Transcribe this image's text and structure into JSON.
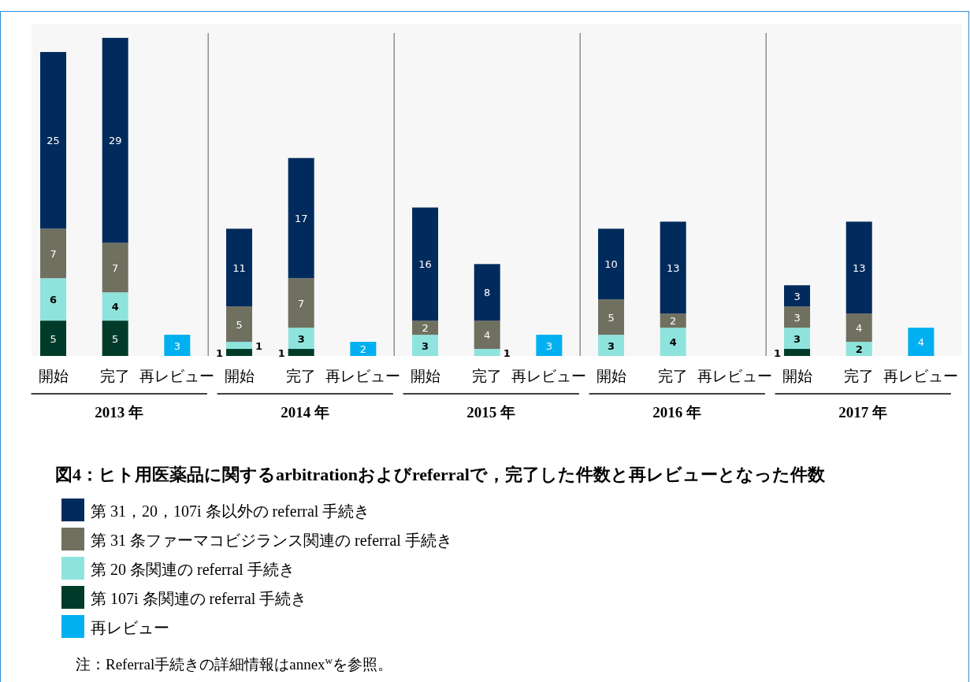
{
  "chart_data": {
    "type": "bar",
    "stacked": true,
    "data_labels": true,
    "legend": "bottom",
    "title": "図4：ヒト用医薬品に関するarbitrationおよびreferralで，完了した件数と再レビューとなった件数",
    "categories": [
      "開始",
      "完了",
      "再レビュー",
      "開始",
      "完了",
      "再レビュー",
      "開始",
      "完了",
      "再レビュー",
      "開始",
      "完了",
      "再レビュー",
      "開始",
      "完了",
      "再レビュー"
    ],
    "series": [
      {
        "name": "第 107i 条関連の referral 手続き",
        "color": "#003b2a",
        "values": [
          5,
          5,
          null,
          1,
          1,
          null,
          null,
          null,
          null,
          null,
          null,
          null,
          1,
          null,
          null
        ]
      },
      {
        "name": "第 20 条関連の referral 手続き",
        "color": "#8fe3dd",
        "values": [
          6,
          4,
          null,
          1,
          3,
          null,
          3,
          1,
          null,
          3,
          4,
          null,
          3,
          2,
          null
        ]
      },
      {
        "name": "第 31 条ファーマコビジランス関連の referral 手続き",
        "color": "#707060",
        "values": [
          7,
          7,
          null,
          5,
          7,
          null,
          2,
          4,
          null,
          5,
          2,
          null,
          3,
          4,
          null
        ]
      },
      {
        "name": "第 31，20，107i 条以外の referral 手続き",
        "color": "#002b5c",
        "values": [
          25,
          29,
          null,
          11,
          17,
          null,
          16,
          8,
          null,
          10,
          13,
          null,
          3,
          13,
          null
        ]
      },
      {
        "name": "再レビュー",
        "color": "#00b0f0",
        "values": [
          null,
          null,
          3,
          null,
          null,
          2,
          null,
          null,
          3,
          null,
          null,
          null,
          null,
          null,
          4
        ]
      }
    ],
    "annotations": [
      "2013 年",
      "2014 年",
      "2015 年",
      "2016 年",
      "2017 年",
      "注：Referral手続きの詳細情報はannex$^{w}$を参照。"
    ]
  }
}
